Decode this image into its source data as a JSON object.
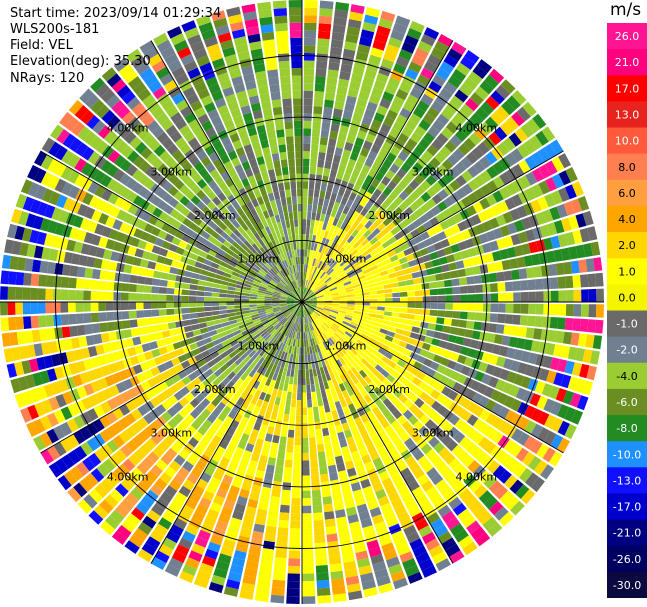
{
  "header": {
    "start_time": "Start time: 2023/09/14 01:29:34",
    "station": "WLS200s-181",
    "field": "Field: VEL",
    "elevation": "Elevation(deg): 35.30",
    "nrays": "NRays: 120"
  },
  "colorbar": {
    "unit": "m/s",
    "ticks": [
      "26.0",
      "21.0",
      "17.0",
      "13.0",
      "10.0",
      "8.0",
      "6.0",
      "4.0",
      "2.0",
      "1.0",
      "0.0",
      "-1.0",
      "-2.0",
      "-4.0",
      "-6.0",
      "-8.0",
      "-10.0",
      "-13.0",
      "-17.0",
      "-21.0",
      "-26.0",
      "-30.0"
    ],
    "colors": [
      "#ff1493",
      "#ff007f",
      "#ff0000",
      "#e8231e",
      "#ff5a3c",
      "#ff7f50",
      "#ff9f40",
      "#ffa500",
      "#ffd700",
      "#ffff00",
      "#f5f500",
      "#6a6a6a",
      "#708090",
      "#9acd32",
      "#6b8e23",
      "#228b22",
      "#1e90ff",
      "#1010ff",
      "#0000cd",
      "#000080",
      "#000060",
      "#0a0a40"
    ]
  },
  "chart_data": {
    "type": "polar_ppi",
    "field": "VEL",
    "units": "m/s",
    "range_rings_km": [
      1.0,
      2.0,
      3.0,
      4.0
    ],
    "range_ring_labels": [
      "1.00km",
      "2.00km",
      "3.00km",
      "4.00km"
    ],
    "max_range_km": 4.9,
    "n_rays": 120,
    "elevation_deg": 35.3,
    "spoke_interval_deg": 30,
    "pattern": {
      "near_field_east": "positive (2 to 6 m/s, yellow)",
      "near_field_west": "negative (-1 to -4 m/s, green/gray)",
      "far_field_south_southwest": "positive (2 to 8 m/s, yellow/orange)",
      "far_field_north": "negative (-2 to -6 m/s, green)",
      "outer_edge": "noisy, all colors"
    }
  }
}
